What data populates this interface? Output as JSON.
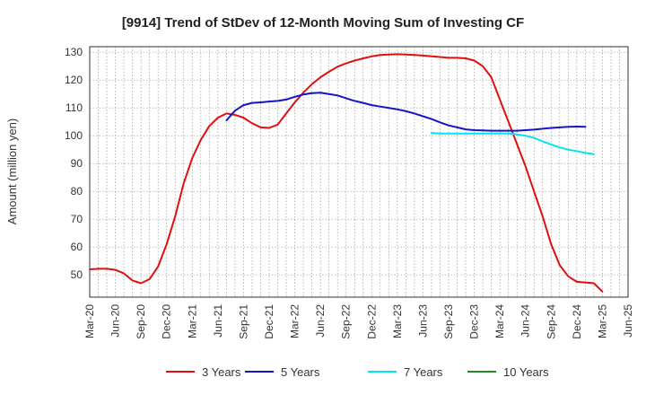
{
  "chart_data": {
    "type": "line",
    "title": "[9914]  Trend of StDev of 12-Month Moving Sum of Investing CF",
    "xlabel": "",
    "ylabel": "Amount (million yen)",
    "ylim": [
      42,
      132
    ],
    "yticks": [
      50,
      60,
      70,
      80,
      90,
      100,
      110,
      120,
      130
    ],
    "grid": true,
    "legend_position": "bottom",
    "x_categories": [
      "Mar-20",
      "Jun-20",
      "Sep-20",
      "Dec-20",
      "Mar-21",
      "Jun-21",
      "Sep-21",
      "Dec-21",
      "Mar-22",
      "Jun-22",
      "Sep-22",
      "Dec-22",
      "Mar-23",
      "Jun-23",
      "Sep-23",
      "Dec-23",
      "Mar-24",
      "Jun-24",
      "Sep-24",
      "Dec-24",
      "Mar-25",
      "Jun-25"
    ],
    "series": [
      {
        "name": "3 Years",
        "color": "#e01010",
        "start_index": 0,
        "values": [
          52,
          52.2,
          52.2,
          51.8,
          50.5,
          48,
          47,
          48.5,
          53,
          61,
          71,
          83,
          92,
          98.5,
          103.5,
          106.5,
          108,
          107.5,
          106.5,
          104.5,
          103,
          102.8,
          104,
          108,
          112,
          115.5,
          118.5,
          121,
          123,
          124.8,
          126,
          127,
          127.8,
          128.5,
          129,
          129.2,
          129.3,
          129.2,
          129,
          128.8,
          128.5,
          128.3,
          128,
          128,
          127.8,
          127,
          125,
          121,
          113,
          105,
          97,
          89,
          80,
          71,
          61,
          53.5,
          49.5,
          47.5,
          47.3,
          47,
          44
        ]
      },
      {
        "name": "5 Years",
        "color": "#1515c8",
        "start_index": 16,
        "values": [
          105.5,
          109,
          111,
          111.8,
          112,
          112.3,
          112.5,
          113,
          114,
          114.8,
          115.3,
          115.5,
          115,
          114.5,
          113.5,
          112.5,
          111.8,
          111,
          110.5,
          110,
          109.5,
          108.8,
          108,
          107,
          106,
          104.8,
          103.7,
          103,
          102.3,
          102,
          101.9,
          101.8,
          101.8,
          101.8,
          101.8,
          102,
          102.2,
          102.5,
          102.8,
          103,
          103.2,
          103.3,
          103.2
        ]
      },
      {
        "name": "7 Years",
        "color": "#00e5f0",
        "start_index": 40,
        "values": [
          101,
          100.8,
          100.8,
          100.8,
          100.8,
          100.8,
          100.8,
          100.8,
          100.8,
          100.8,
          100.5,
          100,
          99.2,
          98,
          96.8,
          95.8,
          95,
          94.5,
          93.8,
          93.4
        ]
      },
      {
        "name": "10 Years",
        "color": "#1e8c1e",
        "start_index": 0,
        "values": []
      }
    ]
  }
}
